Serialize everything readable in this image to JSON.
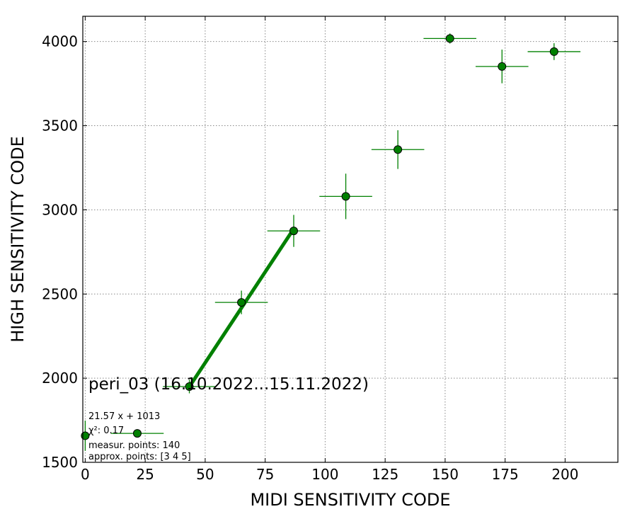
{
  "chart_data": {
    "type": "scatter",
    "title": "peri_03 (16.10.2022...15.11.2022)",
    "xlabel": "MIDI SENSITIVITY CODE",
    "ylabel": "HIGH SENSITIVITY CODE",
    "xlim": [
      -1,
      222
    ],
    "ylim": [
      1500,
      4150
    ],
    "xticks": [
      0,
      25,
      50,
      75,
      100,
      125,
      150,
      175,
      200
    ],
    "yticks": [
      1500,
      2000,
      2500,
      3000,
      3500,
      4000
    ],
    "grid": true,
    "colors": {
      "points": "#008000",
      "point_edge": "#000000",
      "fit_line": "#008000",
      "error_bars": "#008000"
    },
    "points": [
      {
        "x": 0,
        "y": 1658,
        "xerr": 0,
        "yerr": 90
      },
      {
        "x": 21.7,
        "y": 1672,
        "xerr": 11,
        "yerr": 0
      },
      {
        "x": 43.4,
        "y": 1950,
        "xerr": 11,
        "yerr": 40
      },
      {
        "x": 65.1,
        "y": 2450,
        "xerr": 11,
        "yerr": 70
      },
      {
        "x": 86.9,
        "y": 2875,
        "xerr": 11,
        "yerr": 95
      },
      {
        "x": 108.6,
        "y": 3080,
        "xerr": 11,
        "yerr": 135
      },
      {
        "x": 130.3,
        "y": 3358,
        "xerr": 11,
        "yerr": 115
      },
      {
        "x": 152.0,
        "y": 4018,
        "xerr": 11,
        "yerr": 30
      },
      {
        "x": 173.7,
        "y": 3852,
        "xerr": 11,
        "yerr": 100
      },
      {
        "x": 195.4,
        "y": 3940,
        "xerr": 11,
        "yerr": 50
      }
    ],
    "fit": {
      "slope": 21.57,
      "intercept": 1013,
      "x_range": [
        43.4,
        86.9
      ]
    },
    "annotations": [
      "21.57 x + 1013",
      "χ²: 0.17",
      "measur. points: 140",
      "approx. points: [3 4 5]"
    ]
  }
}
